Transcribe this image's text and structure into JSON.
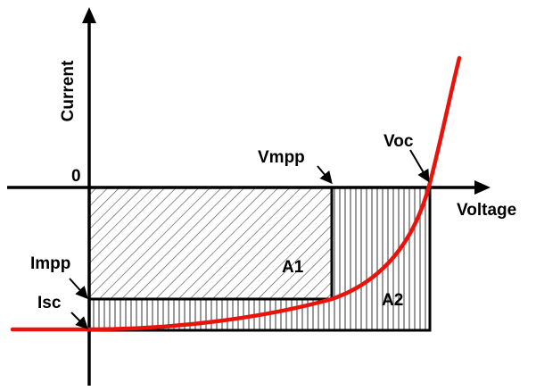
{
  "labels": {
    "y_axis": "Current",
    "x_axis": "Voltage",
    "origin": "0",
    "vmpp": "Vmpp",
    "voc": "Voc",
    "impp": "Impp",
    "isc": "Isc",
    "a1": "A1",
    "a2": "A2"
  },
  "colors": {
    "curve": "#e8140c",
    "axes": "#000000",
    "hatch": "#555555",
    "background": "#ffffff"
  },
  "regions": {
    "a1_pattern": "diagonal-hatch",
    "a2_pattern": "vertical-hatch"
  }
}
